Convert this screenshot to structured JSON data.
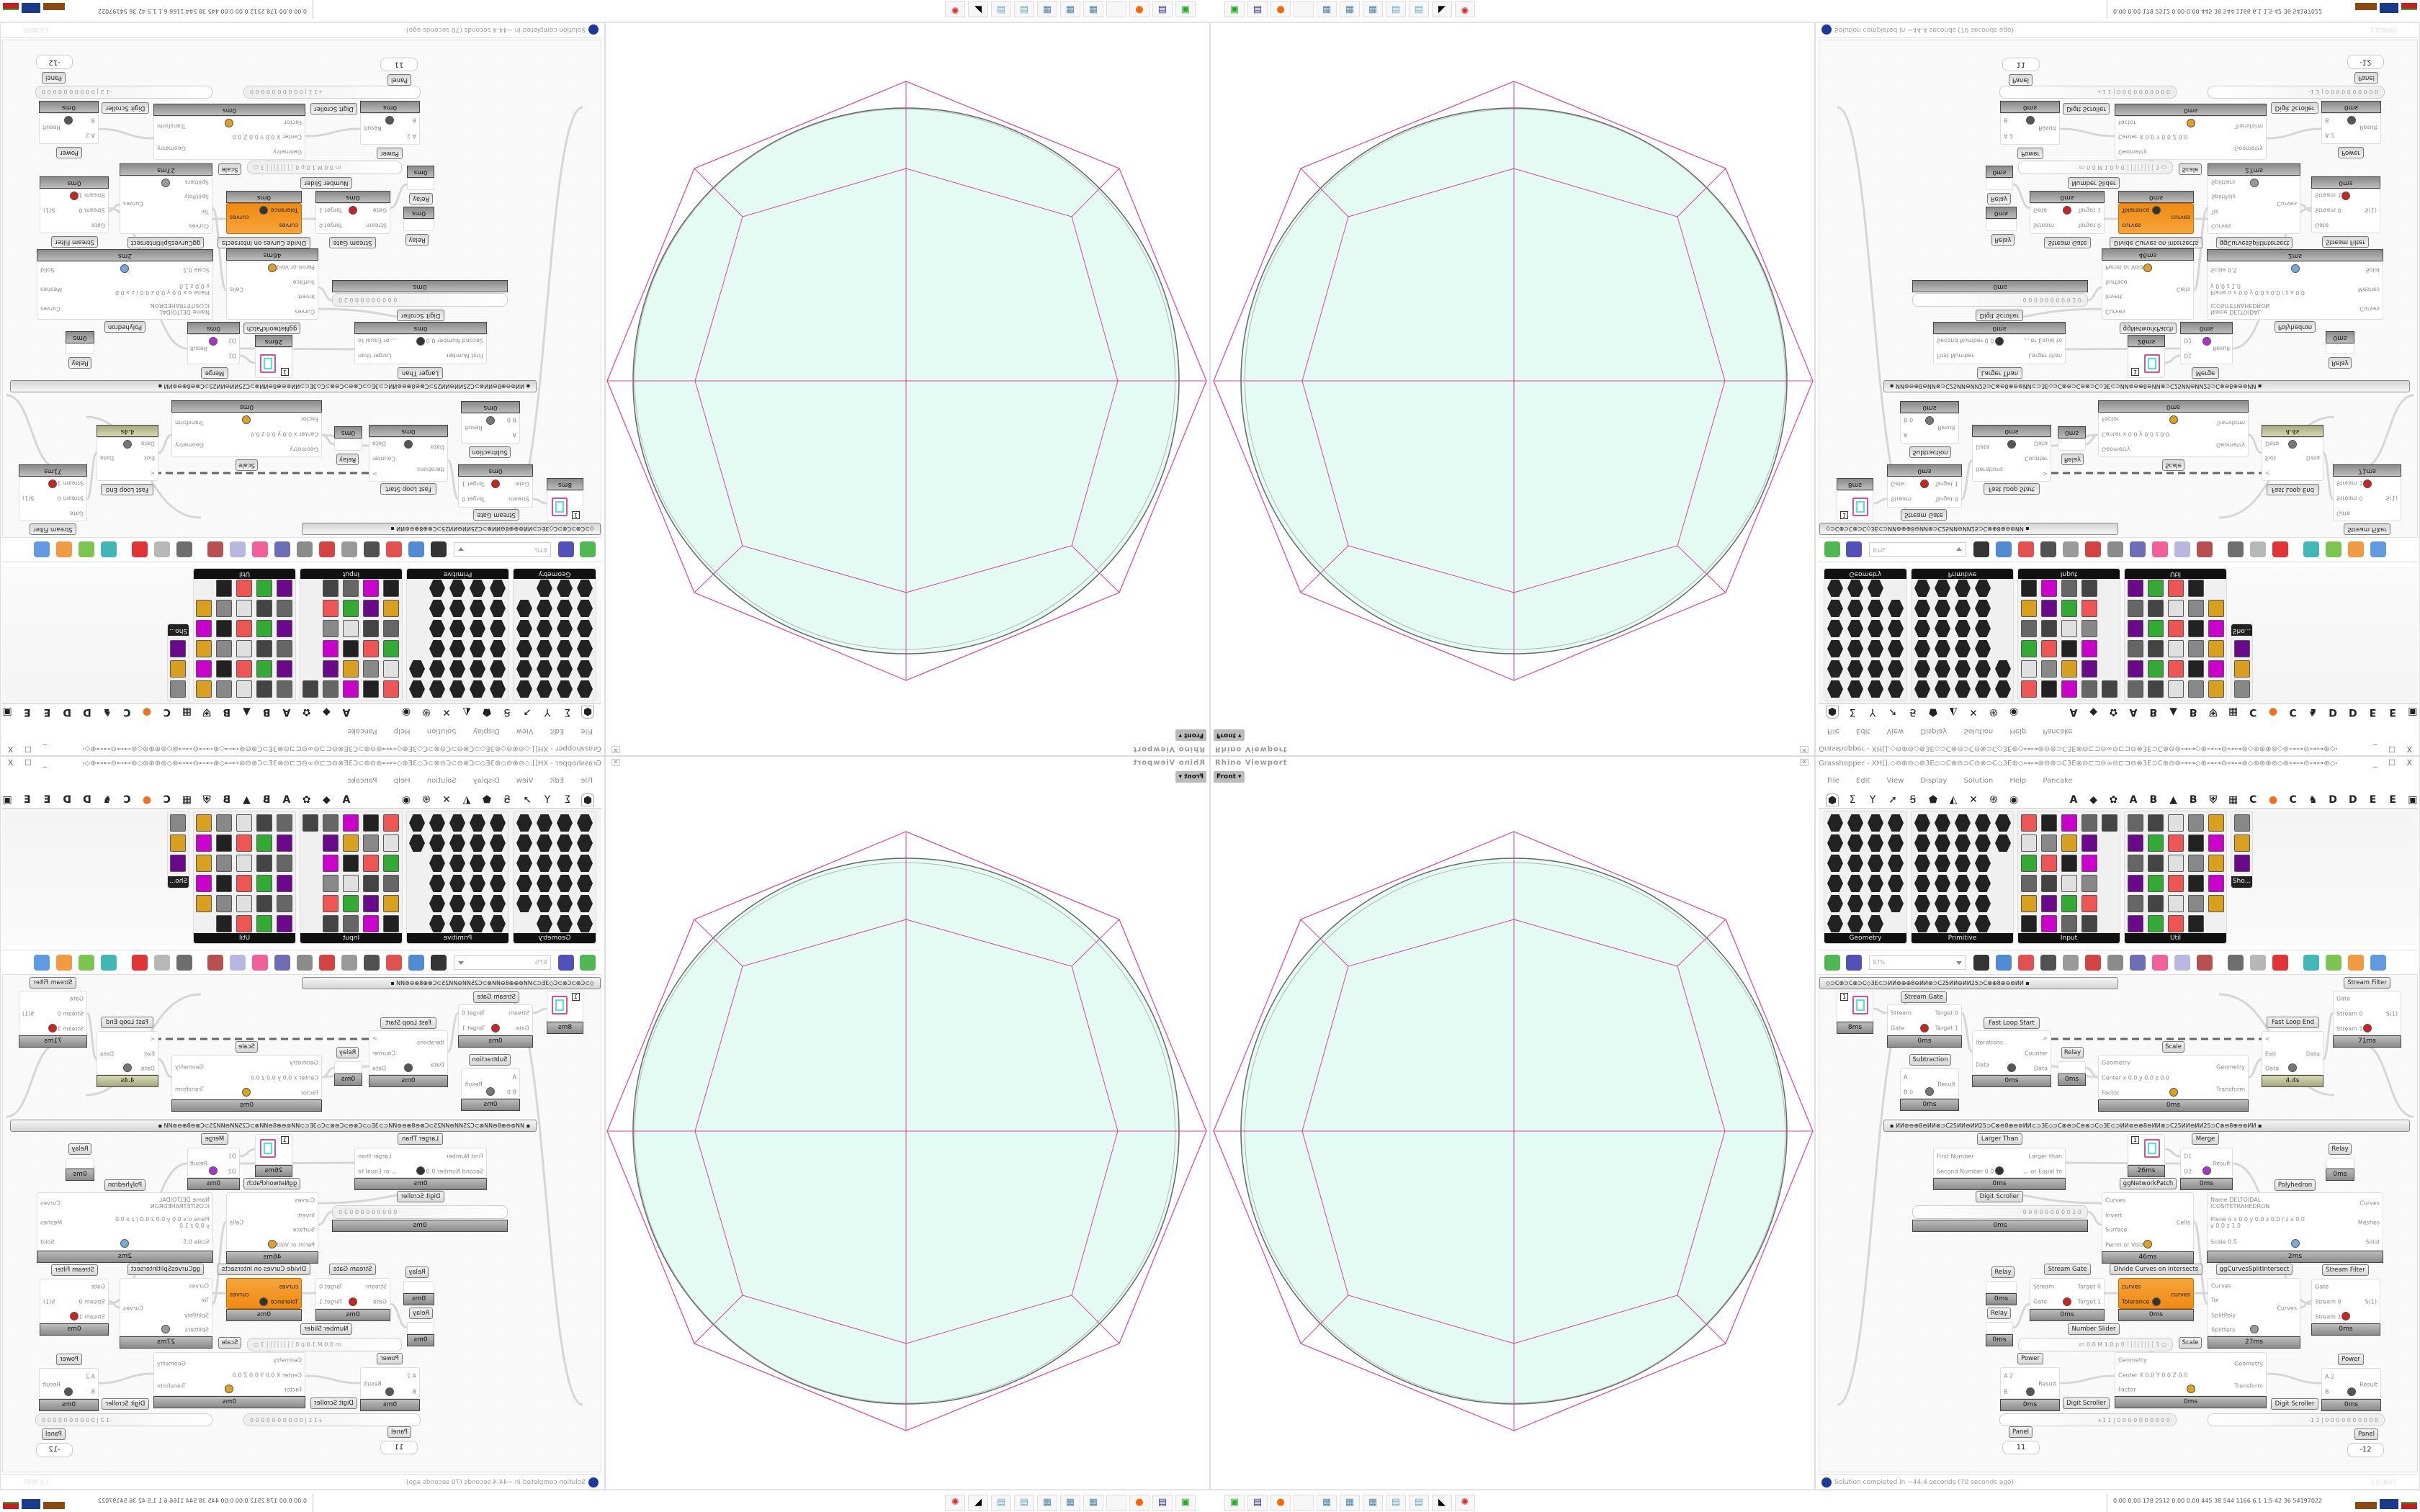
{
  "viewport": {
    "title": "Rhino Viewport",
    "view_button": "Front",
    "close_icon": "close-icon",
    "colors": {
      "packing_fill": "#e4fbf3",
      "packing_stroke": "#9a9a9a",
      "polyhedron_edges": "#e0409a"
    }
  },
  "taskbar": {
    "icons": [
      "drive-icon",
      "floppy-64-icon",
      "firefox-icon",
      "blank-icon",
      "calculator-icon",
      "calculator-icon",
      "calculator-icon",
      "notepad-icon",
      "notepad-icon",
      "inkscape-icon",
      "red-gear-icon"
    ],
    "stats": "0.00 0.00 178 2512 0.00 0.00 445  38  544 1166 6.1  1.5  42  36  54197022"
  },
  "grasshopper": {
    "title": "Grasshopper - XH[].◇⊖⊕⊖◇⊕3E◇⊃C⊗⊖⊃C⊖⊗⊃C◇3E⊕◇⊶⊶⊚⊖⊕⊃C3E⊗⊖⊏⊐⊖∞⊖⊏⊐⊖⊗3E⊃C⊕⊖⊚⊶⊶◇⊕⊶⊶⊖⊶⊶⊚◇⊚⊕⊕⊚◇⊚⊶⊶⊖⊶⊶⊕◇⊶⊶⊚⊖⊕⊃C3E⊗⊖⊏⊐⊖∞⊖⊏⊐⊖...",
    "window_buttons": "_ ☐ X",
    "menu": [
      "File",
      "Edit",
      "View",
      "Display",
      "Solution",
      "Help",
      "Pancake"
    ],
    "tab_icons": [
      "⬢",
      "Σ",
      "Y",
      "➚",
      "Ꞩ",
      "⬟",
      "◭",
      "✕",
      "֍",
      "◉"
    ],
    "tab_letters": [
      "A",
      "◆",
      "✿",
      "A",
      "B",
      "▲",
      "B",
      "⛨",
      "▦",
      "C",
      "●",
      "C",
      "♞",
      "D",
      "D",
      "E",
      "E",
      "▣"
    ],
    "categories": [
      "Geometry",
      "Primitive",
      "Input",
      "Util",
      "Sho..."
    ],
    "zoom": "97%",
    "canvas_toolbar_icons": [
      "open-icon",
      "save-icon",
      "zoom-extents-icon",
      "preview-eye-icon",
      "sketch-icon",
      "cluster-icon",
      "email-icon",
      "gha-icon",
      "rhino-icon",
      "search-icon",
      "package-icon",
      "bulb-icon",
      "wires-icon",
      "bake-icon",
      "shape-icon",
      "red-solid-icon",
      "teal-icon",
      "green-icon",
      "sphere-icon",
      "blue-sphere-icon"
    ],
    "groups": [
      "◇⊃C⊗⊃C⊗⊃C◇3E⊂⊃ИИ⊚⊕⊕8⊖ИИ⊗⊃C25ИИ⊖ИИ25⊃C⊗⊕8⊕⊖⊚ИИ     ▪",
      "▪     ИИ⊚⊖⊕8⊖ИИ⊗⊃C25ИИ⊖ИИ25⊃C⊗⊖8⊕⊖⊚ИИ⊂⊃3E◇⊃C⊗⊖⊃C⊖⊗⊃C◇3E⊂⊃ИИ⊚⊖⊕8⊖ИИ⊗⊃C25ИИ⊖ИИ25⊃C⊗⊖8⊕⊖⊚ИИ     ▪"
    ],
    "components": [
      {
        "title": "",
        "inputs": [],
        "outputs": [],
        "time": "8ms",
        "value": "1"
      },
      {
        "title": "Stream Gate",
        "inputs": [
          "Stream",
          "Gate"
        ],
        "outputs": [
          "Target 0",
          "Target 1"
        ],
        "time": "0ms"
      },
      {
        "title": "Fast Loop Start",
        "inputs": [
          "Iterations",
          "Data"
        ],
        "outputs": [
          ">",
          "Counter",
          "Data"
        ],
        "time": "0ms"
      },
      {
        "title": "Subtraction",
        "inputs": [
          "A",
          "B 0"
        ],
        "outputs": [
          "Result"
        ],
        "time": "0ms"
      },
      {
        "title": "Relay",
        "inputs": [],
        "outputs": [],
        "time": "0ms"
      },
      {
        "title": "Scale",
        "inputs": [
          "Geometry",
          "Center x 0.0 y 0.0 z 0.0",
          "Factor"
        ],
        "outputs": [
          "Geometry",
          "Transform"
        ],
        "time": "0ms"
      },
      {
        "title": "Fast Loop End",
        "inputs": [
          "<",
          "Exit",
          "Data"
        ],
        "outputs": [
          "Data"
        ],
        "time": "4.4s"
      },
      {
        "title": "Stream Filter",
        "inputs": [
          "Gate",
          "Stream 0",
          "Stream 1"
        ],
        "outputs": [
          "S(1)"
        ],
        "time": "71ms"
      },
      {
        "title": "Larger Than",
        "inputs": [
          "First Number",
          "Second Number 0.0"
        ],
        "outputs": [
          "Larger than",
          "... or Equal to"
        ],
        "time": "0ms"
      },
      {
        "title": "",
        "inputs": [],
        "outputs": [],
        "time": "26ms",
        "value": "1"
      },
      {
        "title": "Merge",
        "inputs": [
          "D1",
          "D2"
        ],
        "outputs": [
          "Result"
        ],
        "time": "0ms"
      },
      {
        "title": "Relay",
        "inputs": [],
        "outputs": [],
        "time": "0ms"
      },
      {
        "title": "ggNetworkPatch",
        "inputs": [
          "Curves",
          "Invert",
          "Surface",
          "Perim or Void"
        ],
        "outputs": [
          "Cells"
        ],
        "time": "46ms"
      },
      {
        "title": "Polyhedron",
        "inputs": [
          "Name DELTOIDAL ICOSITETRAHEDRON",
          "Plane  o x 0.0 y 0.0 z 0.0 / z x 0.0 y 0.0 z 1.0",
          "Scale 0.5"
        ],
        "outputs": [
          "Curves",
          "Meshes",
          "Solid"
        ],
        "time": "2ms"
      },
      {
        "title": "Relay",
        "inputs": [],
        "outputs": [],
        "time": "0ms"
      },
      {
        "title": "Stream Gate",
        "inputs": [
          "Stream",
          "Gate"
        ],
        "outputs": [
          "Target 0",
          "Target 1"
        ],
        "time": "0ms"
      },
      {
        "title": "Divide Curves on Intersects",
        "inputs": [
          "curves",
          "Tolerance"
        ],
        "outputs": [
          "curves"
        ],
        "time": "0ms"
      },
      {
        "title": "ggCurvesSplitIntersect",
        "inputs": [
          "Curves",
          "Tol",
          "SplitPoly",
          "Splitters"
        ],
        "outputs": [
          "Curves"
        ],
        "time": "27ms"
      },
      {
        "title": "Stream Filter",
        "inputs": [
          "Gate",
          "Stream 0",
          "Stream 1"
        ],
        "outputs": [
          "S(1)"
        ],
        "time": "0ms"
      },
      {
        "title": "Relay",
        "inputs": [],
        "outputs": [],
        "time": "0ms"
      },
      {
        "title": "Scale",
        "inputs": [
          "Geometry",
          "Center X 0.0 Y 0.0 Z 0.0",
          "Factor"
        ],
        "outputs": [
          "Geometry",
          "Transform"
        ],
        "time": "0ms"
      },
      {
        "title": "Power",
        "inputs": [
          "A 2",
          "B"
        ],
        "outputs": [
          "Result"
        ],
        "time": "0ms"
      },
      {
        "title": "Power",
        "inputs": [
          "A 2",
          "B"
        ],
        "outputs": [
          "Result"
        ],
        "time": "0ms"
      }
    ],
    "widgets": [
      {
        "title": "Digit Scroller",
        "value": "· 0 0 0 0 0 0 0 0 0 2 0",
        "time": "0ms"
      },
      {
        "title": "Number Slider",
        "value": "m 0.0  M 1.0  p 0   ┆┆┆┆┆┆┆┆  1 ○"
      },
      {
        "title": "Digit Scroller",
        "value": "+1 1 | 0 0 0 0 0 0 0 0 0 0"
      },
      {
        "title": "Digit Scroller",
        "value": "-1 2 | 0 0 0 0 0 0 0 0 0 0"
      },
      {
        "title": "Panel",
        "value": "11"
      },
      {
        "title": "Panel",
        "value": "-12"
      }
    ],
    "extra_labels": [
      "Stream Filter",
      "Scale"
    ],
    "status": "Solution completed in −44.4 seconds (70 seconds ago)",
    "version": "1.0.0007"
  }
}
